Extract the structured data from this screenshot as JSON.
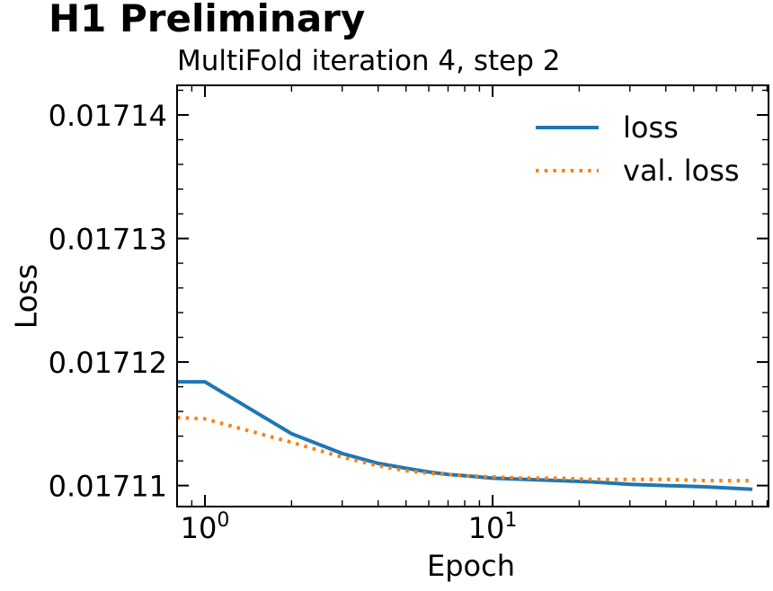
{
  "page_title": "H1 Preliminary",
  "chart_data": {
    "type": "line",
    "title": "MultiFold iteration 4, step 2",
    "xlabel": "Epoch",
    "ylabel": "Loss",
    "x_scale": "log",
    "grid": false,
    "xlim": [
      0.8,
      91
    ],
    "ylim": [
      0.0171083,
      0.0171424
    ],
    "x_major_ticks": [
      1,
      10
    ],
    "x_major_tick_labels": [
      {
        "base": "10",
        "exp": "0"
      },
      {
        "base": "10",
        "exp": "1"
      }
    ],
    "x_minor_ticks": [
      0.9,
      2,
      3,
      4,
      5,
      6,
      7,
      8,
      9,
      20,
      30,
      40,
      50,
      60,
      70,
      80,
      90
    ],
    "y_major_ticks": [
      0.01711,
      0.01712,
      0.01713,
      0.01714
    ],
    "y_major_tick_labels": [
      "0.01711",
      "0.01712",
      "0.01713",
      "0.01714"
    ],
    "y_minor_ticks": [
      0.017112,
      0.017114,
      0.017116,
      0.017118,
      0.017122,
      0.017124,
      0.017126,
      0.017128,
      0.017132,
      0.017134,
      0.017136,
      0.017138,
      0.017142
    ],
    "legend": {
      "position": "upper right",
      "frame": false,
      "entries": [
        "loss",
        "val. loss"
      ]
    },
    "axis_color": "#000000",
    "series": [
      {
        "name": "loss",
        "color": "#1f77b4",
        "line_style": "solid",
        "line_width": 4,
        "x": [
          0.8,
          1,
          2,
          3,
          4,
          5,
          6,
          7,
          8,
          10,
          13,
          17,
          22,
          30,
          40,
          55,
          80
        ],
        "y": [
          0.0171184,
          0.0171184,
          0.0171142,
          0.0171126,
          0.0171118,
          0.0171114,
          0.0171111,
          0.0171109,
          0.0171108,
          0.0171106,
          0.0171105,
          0.0171104,
          0.0171103,
          0.0171101,
          0.01711,
          0.0171099,
          0.0171097
        ]
      },
      {
        "name": "val. loss",
        "color": "#ff7f0e",
        "line_style": "dotted",
        "line_width": 4,
        "x": [
          0.8,
          1,
          2,
          3,
          4,
          5,
          6,
          7,
          8,
          10,
          13,
          17,
          22,
          30,
          40,
          55,
          80
        ],
        "y": [
          0.0171155,
          0.0171154,
          0.0171135,
          0.0171123,
          0.0171116,
          0.0171112,
          0.017111,
          0.0171109,
          0.0171108,
          0.0171107,
          0.0171106,
          0.0171106,
          0.0171105,
          0.0171105,
          0.0171105,
          0.0171104,
          0.0171104
        ]
      }
    ]
  }
}
